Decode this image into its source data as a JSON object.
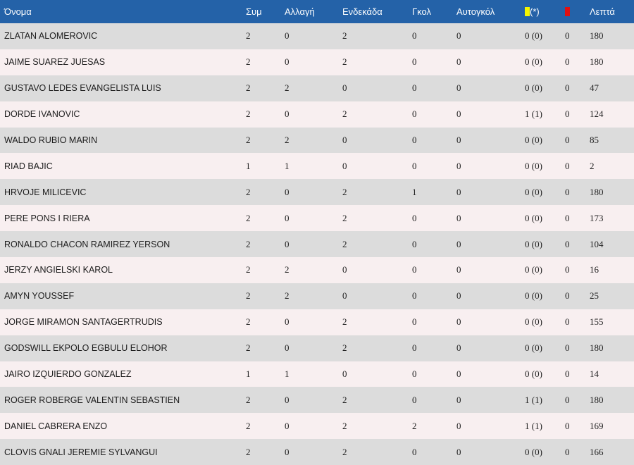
{
  "header": {
    "name": "Όνομα",
    "appearances": "Συμ",
    "substitute": "Αλλαγή",
    "starting": "Ενδεκάδα",
    "goals": "Γκολ",
    "own_goals": "Αυτογκόλ",
    "yellow_suffix": "(*)",
    "yellow_icon": "yellow-card-icon",
    "red_icon": "red-card-icon",
    "minutes": "Λεπτά"
  },
  "colors": {
    "header_bg": "#2462a8",
    "row_odd": "#dcdcdc",
    "row_even": "#f8eff0",
    "yellow_card": "#f5f500",
    "red_card": "#e01010"
  },
  "rows": [
    {
      "name": "ZLATAN ALOMEROVIC",
      "app": "2",
      "sub": "0",
      "start": "2",
      "goals": "0",
      "og": "0",
      "yellow": "0 (0)",
      "red": "0",
      "min": "180"
    },
    {
      "name": "JAIME SUAREZ JUESAS",
      "app": "2",
      "sub": "0",
      "start": "2",
      "goals": "0",
      "og": "0",
      "yellow": "0 (0)",
      "red": "0",
      "min": "180"
    },
    {
      "name": "GUSTAVO LEDES EVANGELISTA LUIS",
      "app": "2",
      "sub": "2",
      "start": "0",
      "goals": "0",
      "og": "0",
      "yellow": "0 (0)",
      "red": "0",
      "min": "47"
    },
    {
      "name": "DORDE IVANOVIC",
      "app": "2",
      "sub": "0",
      "start": "2",
      "goals": "0",
      "og": "0",
      "yellow": "1 (1)",
      "red": "0",
      "min": "124"
    },
    {
      "name": "WALDO RUBIO MARIN",
      "app": "2",
      "sub": "2",
      "start": "0",
      "goals": "0",
      "og": "0",
      "yellow": "0 (0)",
      "red": "0",
      "min": "85"
    },
    {
      "name": "RIAD BAJIC",
      "app": "1",
      "sub": "1",
      "start": "0",
      "goals": "0",
      "og": "0",
      "yellow": "0 (0)",
      "red": "0",
      "min": "2"
    },
    {
      "name": "HRVOJE MILICEVIC",
      "app": "2",
      "sub": "0",
      "start": "2",
      "goals": "1",
      "og": "0",
      "yellow": "0 (0)",
      "red": "0",
      "min": "180"
    },
    {
      "name": "PERE PONS I RIERA",
      "app": "2",
      "sub": "0",
      "start": "2",
      "goals": "0",
      "og": "0",
      "yellow": "0 (0)",
      "red": "0",
      "min": "173"
    },
    {
      "name": "RONALDO CHACON RAMIREZ YERSON",
      "app": "2",
      "sub": "0",
      "start": "2",
      "goals": "0",
      "og": "0",
      "yellow": "0 (0)",
      "red": "0",
      "min": "104"
    },
    {
      "name": "JERZY ANGIELSKI KAROL",
      "app": "2",
      "sub": "2",
      "start": "0",
      "goals": "0",
      "og": "0",
      "yellow": "0 (0)",
      "red": "0",
      "min": "16"
    },
    {
      "name": "AMYN YOUSSEF",
      "app": "2",
      "sub": "2",
      "start": "0",
      "goals": "0",
      "og": "0",
      "yellow": "0 (0)",
      "red": "0",
      "min": "25"
    },
    {
      "name": "JORGE MIRAMON SANTAGERTRUDIS",
      "app": "2",
      "sub": "0",
      "start": "2",
      "goals": "0",
      "og": "0",
      "yellow": "0 (0)",
      "red": "0",
      "min": "155"
    },
    {
      "name": "GODSWILL EKPOLO EGBULU ELOHOR",
      "app": "2",
      "sub": "0",
      "start": "2",
      "goals": "0",
      "og": "0",
      "yellow": "0 (0)",
      "red": "0",
      "min": "180"
    },
    {
      "name": "JAIRO IZQUIERDO GONZALEZ",
      "app": "1",
      "sub": "1",
      "start": "0",
      "goals": "0",
      "og": "0",
      "yellow": "0 (0)",
      "red": "0",
      "min": "14"
    },
    {
      "name": "ROGER ROBERGE VALENTIN SEBASTIEN",
      "app": "2",
      "sub": "0",
      "start": "2",
      "goals": "0",
      "og": "0",
      "yellow": "1 (1)",
      "red": "0",
      "min": "180"
    },
    {
      "name": "DANIEL CABRERA ENZO",
      "app": "2",
      "sub": "0",
      "start": "2",
      "goals": "2",
      "og": "0",
      "yellow": "1 (1)",
      "red": "0",
      "min": "169"
    },
    {
      "name": "CLOVIS GNALI JEREMIE SYLVANGUI",
      "app": "2",
      "sub": "0",
      "start": "2",
      "goals": "0",
      "og": "0",
      "yellow": "0 (0)",
      "red": "0",
      "min": "166"
    }
  ]
}
